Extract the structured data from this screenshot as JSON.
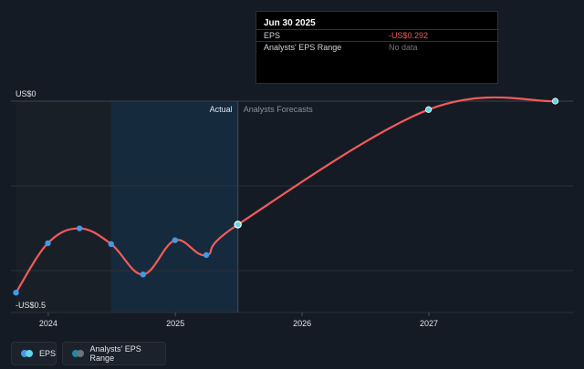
{
  "colors": {
    "background": "#151b24",
    "past_band": "#191f27",
    "forecast_band": "#152a3c",
    "line": "#f25b5b",
    "past_marker": "#3f9be8",
    "forecast_marker": "#66d2e8",
    "grid": "#2a3039"
  },
  "tooltip": {
    "date": "Jun 30 2025",
    "eps_label": "EPS",
    "eps_value": "-US$0.292",
    "range_label": "Analysts' EPS Range",
    "range_value": "No data"
  },
  "legend": {
    "eps": "EPS",
    "range": "Analysts' EPS Range"
  },
  "chart_data": {
    "type": "line",
    "y_top_label": "US$0",
    "y_bottom_label": "-US$0.5",
    "ylim": [
      -0.5,
      0
    ],
    "x_tick_labels": [
      "2024",
      "2025",
      "2026",
      "2027"
    ],
    "divider_labels": {
      "left": "Actual",
      "right": "Analysts Forecasts"
    },
    "series": [
      {
        "name": "EPS",
        "points": [
          {
            "x": "2023-09-30",
            "y": -0.453
          },
          {
            "x": "2023-12-31",
            "y": -0.336
          },
          {
            "x": "2024-03-31",
            "y": -0.301
          },
          {
            "x": "2024-06-30",
            "y": -0.338
          },
          {
            "x": "2024-09-30",
            "y": -0.41
          },
          {
            "x": "2024-12-31",
            "y": -0.329
          },
          {
            "x": "2025-03-31",
            "y": -0.364
          },
          {
            "x": "2025-06-30",
            "y": -0.292
          },
          {
            "x": "2026-12-31",
            "y": -0.02
          },
          {
            "x": "2027-12-31",
            "y": 0.0
          }
        ],
        "forecast_from": "2025-06-30",
        "labeled_forecast_points": [
          "2025-06-30",
          "2026-12-31",
          "2027-12-31"
        ]
      }
    ]
  }
}
